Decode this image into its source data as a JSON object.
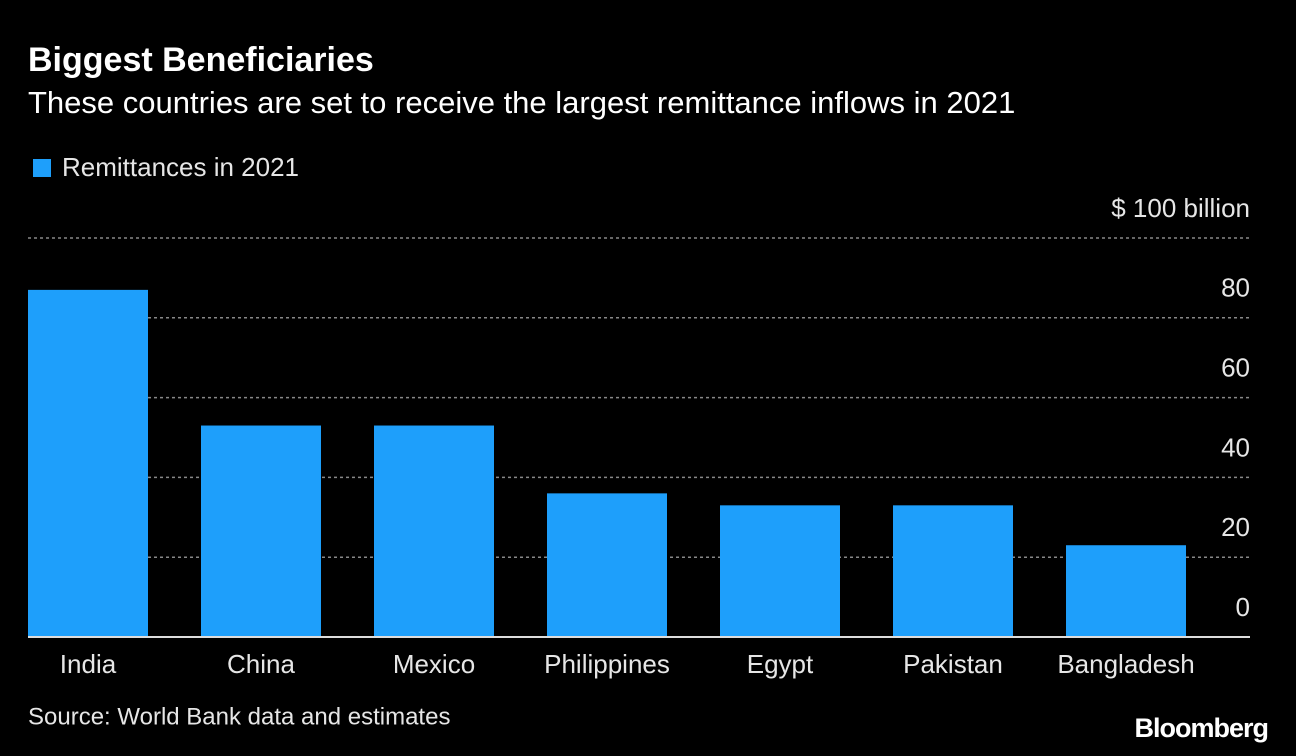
{
  "chart_data": {
    "type": "bar",
    "title": "Biggest Beneficiaries",
    "subtitle": "These countries are set to receive the largest remittance inflows in 2021",
    "categories": [
      "India",
      "China",
      "Mexico",
      "Philippines",
      "Egypt",
      "Pakistan",
      "Bangladesh"
    ],
    "series": [
      {
        "name": "Remittances in 2021",
        "color": "#1e9ffb",
        "values": [
          87,
          53,
          53,
          36,
          33,
          33,
          23
        ]
      }
    ],
    "ylim": [
      0,
      100
    ],
    "yticks": [
      0,
      20,
      40,
      60,
      80,
      {
        "value": 100,
        "label": "$ 100 billion"
      }
    ],
    "grid": true,
    "source": "Source: World Bank data and estimates"
  },
  "logo": "Bloomberg"
}
